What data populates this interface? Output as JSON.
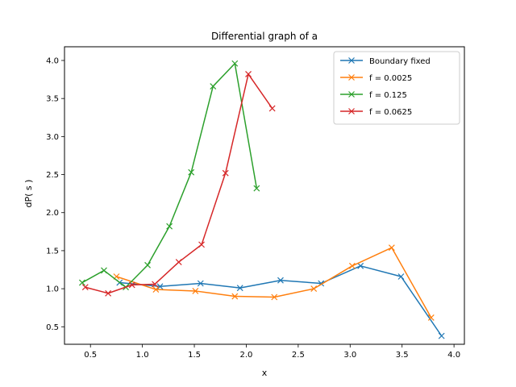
{
  "chart_data": {
    "type": "line",
    "title": "Differential graph of a",
    "xlabel": "x",
    "ylabel": "dP( s )",
    "xlim": [
      0.25,
      4.1
    ],
    "ylim": [
      0.27,
      4.18
    ],
    "xticks": [
      0.5,
      1.0,
      1.5,
      2.0,
      2.5,
      3.0,
      3.5,
      4.0
    ],
    "yticks": [
      0.5,
      1.0,
      1.5,
      2.0,
      2.5,
      3.0,
      3.5,
      4.0
    ],
    "xtick_labels": [
      "0.5",
      "1.0",
      "1.5",
      "2.0",
      "2.5",
      "3.0",
      "3.5",
      "4.0"
    ],
    "ytick_labels": [
      "0.5",
      "1.0",
      "1.5",
      "2.0",
      "2.5",
      "3.0",
      "3.5",
      "4.0"
    ],
    "grid": false,
    "legend_position": "top-right",
    "series": [
      {
        "name": "Boundary fixed",
        "color": "#1f77b4",
        "marker": "x",
        "x": [
          0.78,
          1.17,
          1.56,
          1.94,
          2.33,
          2.72,
          3.1,
          3.49,
          3.88
        ],
        "y": [
          1.08,
          1.03,
          1.07,
          1.01,
          1.11,
          1.07,
          1.3,
          1.16,
          0.38
        ]
      },
      {
        "name": "f = 0.0025",
        "color": "#ff7f0e",
        "marker": "x",
        "x": [
          0.75,
          1.13,
          1.51,
          1.89,
          2.27,
          2.65,
          3.02,
          3.4,
          3.78
        ],
        "y": [
          1.16,
          0.99,
          0.97,
          0.9,
          0.89,
          1.0,
          1.3,
          1.54,
          0.62
        ]
      },
      {
        "name": "f = 0.125",
        "color": "#2ca02c",
        "marker": "x",
        "x": [
          0.42,
          0.63,
          0.84,
          1.05,
          1.26,
          1.47,
          1.68,
          1.89,
          2.1
        ],
        "y": [
          1.08,
          1.24,
          1.02,
          1.31,
          1.82,
          2.53,
          3.66,
          3.96,
          2.32
        ]
      },
      {
        "name": "f = 0.0625",
        "color": "#d62728",
        "marker": "x",
        "x": [
          0.45,
          0.67,
          0.9,
          1.12,
          1.35,
          1.57,
          1.8,
          2.02,
          2.25
        ],
        "y": [
          1.02,
          0.94,
          1.05,
          1.06,
          1.35,
          1.58,
          2.52,
          3.82,
          3.37
        ]
      }
    ]
  }
}
